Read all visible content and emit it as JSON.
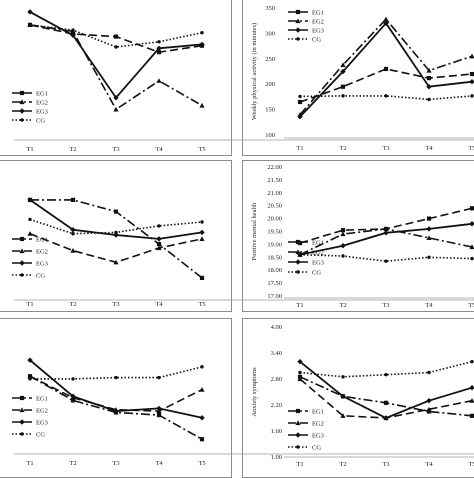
{
  "chart_data": [
    {
      "type": "line",
      "x": [
        "T1",
        "T2",
        "T3",
        "T4",
        "T5"
      ],
      "xlabel": "",
      "ylabel": "",
      "yticks": [],
      "ylim": [
        0,
        100
      ],
      "legend": "middle-left",
      "series": [
        {
          "name": "EG1",
          "dash": "8,4",
          "marker": "square",
          "values": [
            87,
            80,
            78,
            66,
            71
          ]
        },
        {
          "name": "EG2",
          "dash": "9,3,2,3",
          "marker": "triangle",
          "values": [
            87,
            82,
            22,
            44,
            25
          ]
        },
        {
          "name": "EG3",
          "dash": "",
          "marker": "diamond",
          "values": [
            97,
            79,
            31,
            69,
            72
          ]
        },
        {
          "name": "CG",
          "dash": "1.5,2",
          "marker": "circle",
          "values": [
            87,
            83,
            70,
            74,
            81
          ]
        }
      ]
    },
    {
      "type": "line",
      "x": [
        "T1",
        "T2",
        "T3",
        "T4",
        "T5"
      ],
      "xlabel": "",
      "ylabel": "Weekly physical activity (in minutes)",
      "yticks": [
        "100",
        "150",
        "200",
        "250",
        "300",
        "350"
      ],
      "ylim": [
        100,
        350
      ],
      "legend": "top-left",
      "series": [
        {
          "name": "EG1",
          "dash": "8,4",
          "marker": "square",
          "values": [
            165,
            195,
            230,
            212,
            220
          ]
        },
        {
          "name": "EG2",
          "dash": "9,3,2,3",
          "marker": "triangle",
          "values": [
            140,
            238,
            328,
            227,
            255
          ]
        },
        {
          "name": "EG3",
          "dash": "",
          "marker": "diamond",
          "values": [
            136,
            225,
            320,
            195,
            205
          ]
        },
        {
          "name": "CG",
          "dash": "1.5,2",
          "marker": "circle",
          "values": [
            176,
            177,
            177,
            170,
            177
          ]
        }
      ]
    },
    {
      "type": "line",
      "x": [
        "T1",
        "T2",
        "T3",
        "T4",
        "T5"
      ],
      "xlabel": "",
      "ylabel": "",
      "yticks": [],
      "ylim": [
        0,
        100
      ],
      "legend": "bottom-left",
      "series": [
        {
          "name": "EG1",
          "dash": "9,3,2,3",
          "marker": "square",
          "values": [
            77,
            77,
            68,
            43,
            17
          ]
        },
        {
          "name": "EG2",
          "dash": "8,4",
          "marker": "triangle",
          "values": [
            51,
            38,
            29,
            40,
            47
          ]
        },
        {
          "name": "EG3",
          "dash": "",
          "marker": "diamond",
          "values": [
            77,
            54,
            50,
            47,
            52
          ]
        },
        {
          "name": "CG",
          "dash": "1.5,2",
          "marker": "circle",
          "values": [
            62,
            51,
            52,
            57,
            60
          ]
        }
      ]
    },
    {
      "type": "line",
      "x": [
        "T1",
        "T2",
        "T3",
        "T4",
        "T5"
      ],
      "xlabel": "",
      "ylabel": "Positive mental health",
      "yticks": [
        "17.00",
        "17.50",
        "18.00",
        "18.50",
        "19.00",
        "19.50",
        "20.00",
        "20.50",
        "21.00",
        "21.50",
        "22.00"
      ],
      "ylim": [
        17,
        22
      ],
      "legend": "bottom-right",
      "series": [
        {
          "name": "EG1",
          "dash": "8,4",
          "marker": "square",
          "values": [
            19.05,
            19.55,
            19.6,
            20.0,
            20.4
          ]
        },
        {
          "name": "EG2",
          "dash": "9,3,2,3",
          "marker": "triangle",
          "values": [
            18.6,
            19.4,
            19.6,
            19.25,
            18.9
          ]
        },
        {
          "name": "EG3",
          "dash": "",
          "marker": "diamond",
          "values": [
            18.6,
            18.95,
            19.45,
            19.6,
            19.8
          ]
        },
        {
          "name": "CG",
          "dash": "1.5,2",
          "marker": "circle",
          "values": [
            18.6,
            18.55,
            18.35,
            18.5,
            18.45
          ]
        }
      ]
    },
    {
      "type": "line",
      "x": [
        "T1",
        "T2",
        "T3",
        "T4",
        "T5"
      ],
      "xlabel": "",
      "ylabel": "",
      "yticks": [],
      "ylim": [
        0,
        100
      ],
      "legend": "bottom-left",
      "series": [
        {
          "name": "EG1",
          "dash": "9,3,2,3",
          "marker": "square",
          "values": [
            64,
            46,
            37,
            35,
            17
          ]
        },
        {
          "name": "EG2",
          "dash": "8,4",
          "marker": "triangle",
          "values": [
            64,
            48,
            39,
            38,
            54
          ]
        },
        {
          "name": "EG3",
          "dash": "",
          "marker": "diamond",
          "values": [
            76,
            49,
            38,
            40,
            33
          ]
        },
        {
          "name": "CG",
          "dash": "1.5,2",
          "marker": "circle",
          "values": [
            62,
            62,
            63,
            63,
            71
          ]
        }
      ]
    },
    {
      "type": "line",
      "x": [
        "T1",
        "T2",
        "T3",
        "T4",
        "T5"
      ],
      "xlabel": "",
      "ylabel": "Anxiety symptoms",
      "yticks": [
        "1.00",
        "1.60",
        "2.20",
        "2.80",
        "3.40",
        "4.00"
      ],
      "ylim": [
        1.0,
        4.0
      ],
      "legend": "bottom-left",
      "series": [
        {
          "name": "EG1",
          "dash": "9,3,2,3",
          "marker": "square",
          "values": [
            2.85,
            2.4,
            2.25,
            2.05,
            1.95
          ]
        },
        {
          "name": "EG2",
          "dash": "8,4",
          "marker": "triangle",
          "values": [
            2.8,
            1.95,
            1.9,
            2.1,
            2.3
          ]
        },
        {
          "name": "EG3",
          "dash": "",
          "marker": "diamond",
          "values": [
            3.2,
            2.4,
            1.9,
            2.3,
            2.6
          ]
        },
        {
          "name": "CG",
          "dash": "1.5,2",
          "marker": "circle",
          "values": [
            2.95,
            2.85,
            2.9,
            2.95,
            3.2
          ]
        }
      ]
    }
  ]
}
